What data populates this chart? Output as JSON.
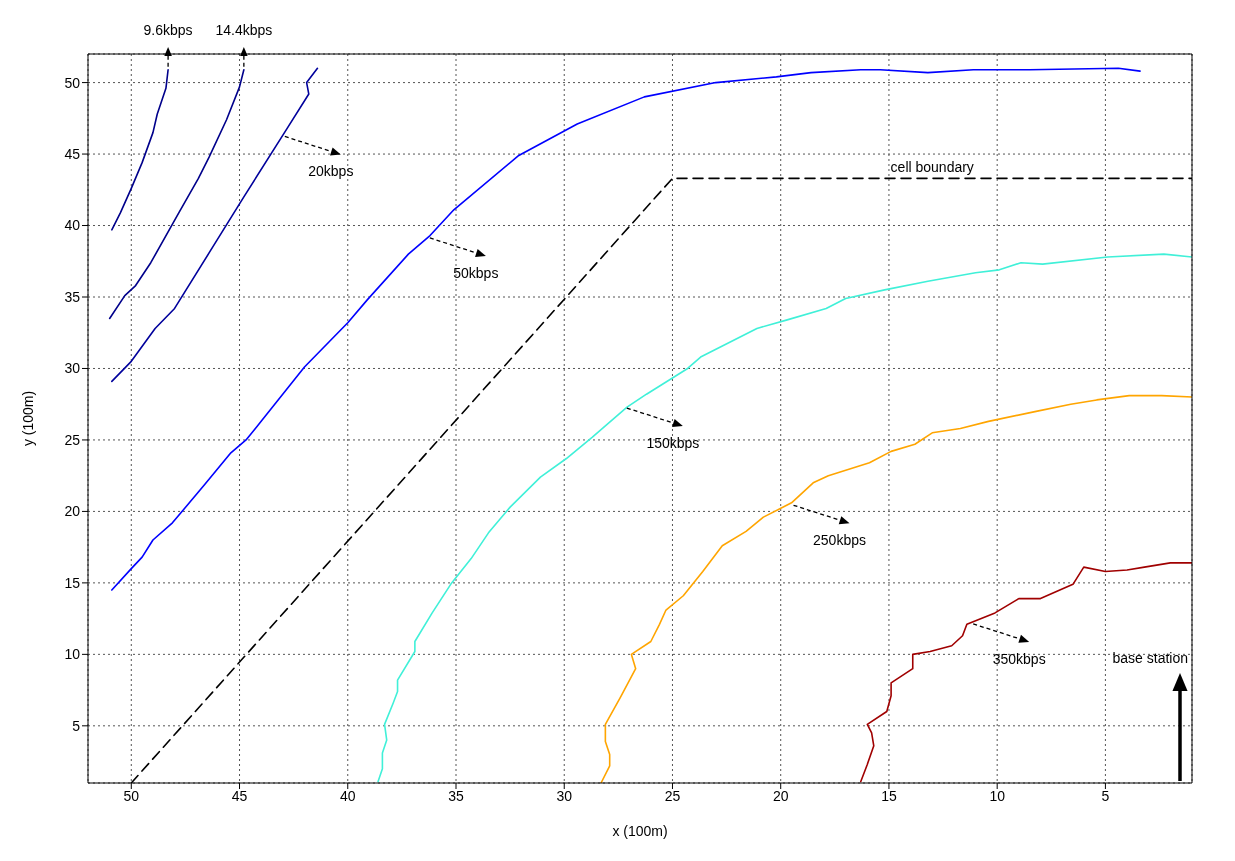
{
  "chart_data": {
    "type": "line",
    "xlabel": "x (100m)",
    "ylabel": "y (100m)",
    "xlim": [
      52,
      1
    ],
    "ylim": [
      1,
      52
    ],
    "xticks": [
      5,
      10,
      15,
      20,
      25,
      30,
      35,
      40,
      45,
      50
    ],
    "yticks": [
      5,
      10,
      15,
      20,
      25,
      30,
      35,
      40,
      45,
      50
    ],
    "grid": true,
    "series": [
      {
        "color": "#00008b",
        "x": [
          48.3,
          48.4,
          48.8,
          49.0,
          49.5,
          50.0,
          50.5,
          50.9
        ],
        "values": [
          50.9,
          49.6,
          47.8,
          46.5,
          44.4,
          42.6,
          40.9,
          39.7
        ]
      },
      {
        "color": "#00008b",
        "x": [
          44.8,
          45.0,
          45.6,
          46.4,
          46.9,
          47.8,
          49.1,
          49.8,
          50.3,
          51.0
        ],
        "values": [
          50.9,
          49.7,
          47.4,
          44.8,
          43.3,
          40.9,
          37.4,
          35.8,
          35.1,
          33.5
        ]
      },
      {
        "color": "#00009c",
        "x": [
          41.4,
          41.9,
          41.8,
          42.8,
          44.8,
          46.4,
          48.0,
          48.9,
          50.0,
          50.9
        ],
        "values": [
          51.0,
          50.0,
          49.2,
          46.8,
          42.0,
          38.1,
          34.2,
          32.8,
          30.5,
          29.1
        ]
      },
      {
        "color": "#0000ff",
        "x": [
          50.9,
          50.0,
          49.5,
          49.0,
          48.1,
          47.6,
          46.6,
          45.4,
          44.7,
          44.0,
          42.0,
          40.0,
          39.1,
          37.2,
          36.2,
          35.1,
          32.1,
          29.4,
          26.3,
          23.0,
          20.2,
          18.6,
          16.3,
          15.4,
          13.2,
          11.1,
          8.5,
          4.4,
          3.4
        ],
        "values": [
          14.5,
          16.0,
          16.8,
          18.0,
          19.2,
          20.1,
          21.9,
          24.1,
          25.0,
          26.3,
          30.1,
          33.2,
          34.8,
          38.0,
          39.3,
          41.1,
          44.9,
          47.1,
          49.0,
          50.0,
          50.4,
          50.7,
          50.9,
          50.9,
          50.7,
          50.9,
          50.9,
          51.0,
          50.8
        ]
      },
      {
        "color": "#40f0d8",
        "x": [
          38.6,
          38.4,
          38.4,
          38.2,
          38.3,
          37.9,
          37.7,
          37.7,
          36.9,
          36.9,
          36.1,
          35.2,
          34.3,
          33.5,
          32.5,
          31.1,
          29.9,
          28.7,
          27.1,
          26.2,
          24.3,
          23.7,
          21.1,
          19.7,
          17.9,
          17.0,
          15.2,
          13.2,
          11.0,
          9.9,
          8.9,
          7.9,
          4.9,
          2.3,
          1.0
        ],
        "values": [
          1.1,
          2.0,
          3.1,
          4.0,
          5.1,
          6.6,
          7.4,
          8.2,
          10.2,
          10.9,
          12.9,
          15.0,
          16.7,
          18.5,
          20.3,
          22.4,
          23.7,
          25.2,
          27.3,
          28.2,
          30.0,
          30.8,
          32.8,
          33.4,
          34.2,
          34.9,
          35.5,
          36.1,
          36.7,
          36.9,
          37.4,
          37.3,
          37.8,
          38.0,
          37.8
        ]
      },
      {
        "color": "#ffa500",
        "x": [
          28.3,
          27.9,
          27.9,
          28.1,
          28.1,
          27.4,
          26.7,
          26.9,
          26.0,
          25.6,
          25.3,
          24.5,
          23.6,
          22.7,
          21.6,
          20.8,
          19.5,
          18.5,
          17.8,
          15.9,
          14.9,
          13.8,
          13.0,
          11.7,
          10.4,
          8.2,
          6.6,
          5.4,
          3.9,
          2.4,
          1.0
        ],
        "values": [
          1.0,
          2.2,
          3.0,
          3.9,
          5.1,
          7.0,
          9.0,
          10.0,
          10.9,
          12.1,
          13.1,
          14.1,
          15.8,
          17.6,
          18.6,
          19.6,
          20.6,
          22.0,
          22.5,
          23.4,
          24.2,
          24.7,
          25.5,
          25.8,
          26.3,
          27.0,
          27.5,
          27.8,
          28.1,
          28.1,
          28.0
        ]
      },
      {
        "color": "#a00000",
        "x": [
          16.3,
          16.0,
          15.7,
          15.8,
          16.0,
          15.1,
          14.9,
          14.9,
          13.9,
          13.9,
          13.1,
          12.1,
          11.6,
          11.4,
          10.1,
          9.0,
          8.0,
          6.5,
          6.0,
          5.0,
          4.0,
          3.2,
          2.0,
          1.0
        ],
        "values": [
          1.1,
          2.3,
          3.6,
          4.5,
          5.1,
          6.0,
          7.1,
          8.0,
          9.0,
          10.0,
          10.2,
          10.6,
          11.3,
          12.1,
          12.9,
          13.9,
          13.9,
          14.9,
          16.1,
          15.8,
          15.9,
          16.1,
          16.4,
          16.4
        ]
      },
      {
        "name": "cell boundary",
        "color": "#000000",
        "line_style": "dashed",
        "x": [
          50,
          25,
          1
        ],
        "values": [
          1,
          43.3,
          43.3
        ]
      }
    ],
    "annotations": [
      {
        "text": "9.6kbps",
        "x": 48.3,
        "y": 50.9
      },
      {
        "text": "14.4kbps",
        "x": 44.8,
        "y": 50.9
      },
      {
        "text": "20kbps",
        "x": 43.0,
        "y": 46.3
      },
      {
        "text": "50kbps",
        "x": 36.3,
        "y": 39.2
      },
      {
        "text": "150kbps",
        "x": 27.2,
        "y": 27.3
      },
      {
        "text": "250kbps",
        "x": 19.5,
        "y": 20.5
      },
      {
        "text": "350kbps",
        "x": 11.2,
        "y": 12.2
      },
      "base station"
    ]
  }
}
